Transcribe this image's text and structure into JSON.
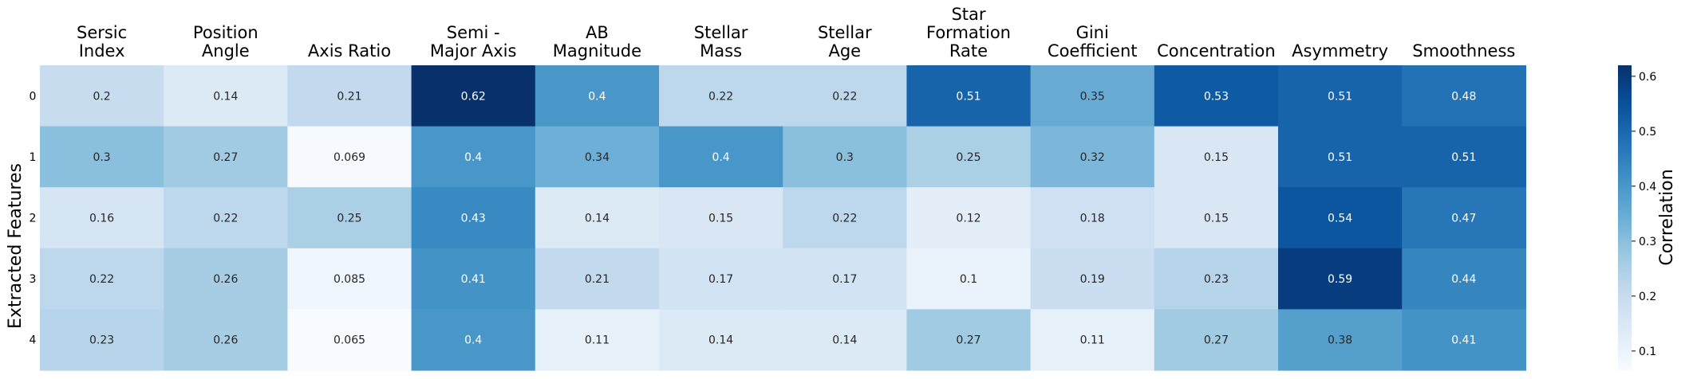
{
  "chart_data": {
    "type": "heatmap",
    "columns": [
      [
        "Sersic",
        "Index"
      ],
      [
        "Position",
        "Angle"
      ],
      [
        "Axis Ratio"
      ],
      [
        "Semi -",
        "Major Axis"
      ],
      [
        "AB",
        "Magnitude"
      ],
      [
        "Stellar",
        "Mass"
      ],
      [
        "Stellar",
        "Age"
      ],
      [
        "Star",
        "Formation",
        "Rate"
      ],
      [
        "Gini",
        "Coefficient"
      ],
      [
        "Concentration"
      ],
      [
        "Asymmetry"
      ],
      [
        "Smoothness"
      ]
    ],
    "rows": [
      "0",
      "1",
      "2",
      "3",
      "4"
    ],
    "values": [
      [
        0.2,
        0.14,
        0.21,
        0.62,
        0.4,
        0.22,
        0.22,
        0.51,
        0.35,
        0.53,
        0.51,
        0.48
      ],
      [
        0.3,
        0.27,
        0.069,
        0.4,
        0.34,
        0.4,
        0.3,
        0.25,
        0.32,
        0.15,
        0.51,
        0.51
      ],
      [
        0.16,
        0.22,
        0.25,
        0.43,
        0.14,
        0.15,
        0.22,
        0.12,
        0.18,
        0.15,
        0.54,
        0.47
      ],
      [
        0.22,
        0.26,
        0.085,
        0.41,
        0.21,
        0.17,
        0.17,
        0.1,
        0.19,
        0.23,
        0.59,
        0.44
      ],
      [
        0.23,
        0.26,
        0.065,
        0.4,
        0.11,
        0.14,
        0.14,
        0.27,
        0.11,
        0.27,
        0.38,
        0.41
      ]
    ],
    "ylabel": "Extracted Features",
    "colorbar": {
      "label": "Correlation",
      "ticks": [
        0.1,
        0.2,
        0.3,
        0.4,
        0.5,
        0.6
      ],
      "range": [
        0.065,
        0.62
      ],
      "colormap": "Blues"
    }
  }
}
